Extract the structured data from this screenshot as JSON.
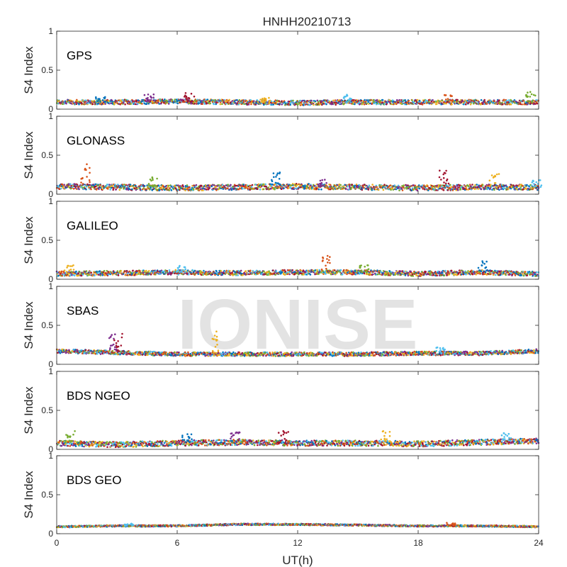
{
  "chart_data": {
    "type": "scatter",
    "title": "HNHH20210713",
    "xlabel": "UT(h)",
    "ylabel": "S4 Index",
    "xlim": [
      0,
      24
    ],
    "ylim": [
      0,
      1
    ],
    "xticks": [
      "0",
      "6",
      "12",
      "18",
      "24"
    ],
    "yticks": [
      "0",
      "0.5",
      "1"
    ],
    "watermark": "IONISE",
    "series_colors": [
      "#0072BD",
      "#D95319",
      "#EDB120",
      "#7E2F8E",
      "#77AC30",
      "#4DBEEE",
      "#A2142F"
    ],
    "panels": [
      {
        "label": "GPS",
        "baseline": [
          [
            0,
            0.09
          ],
          [
            3,
            0.09
          ],
          [
            6,
            0.1
          ],
          [
            9,
            0.09
          ],
          [
            12,
            0.08
          ],
          [
            15,
            0.09
          ],
          [
            18,
            0.09
          ],
          [
            21,
            0.09
          ],
          [
            24,
            0.09
          ]
        ],
        "noise": 0.03,
        "spikes": [
          [
            2.2,
            0.18
          ],
          [
            4.6,
            0.19
          ],
          [
            6.6,
            0.22
          ],
          [
            10.4,
            0.16
          ],
          [
            14.5,
            0.19
          ],
          [
            19.5,
            0.19
          ],
          [
            23.6,
            0.24
          ]
        ]
      },
      {
        "label": "GLONASS",
        "baseline": [
          [
            0,
            0.1
          ],
          [
            3,
            0.09
          ],
          [
            6,
            0.08
          ],
          [
            9,
            0.09
          ],
          [
            12,
            0.1
          ],
          [
            15,
            0.09
          ],
          [
            18,
            0.08
          ],
          [
            21,
            0.09
          ],
          [
            24,
            0.09
          ]
        ],
        "noise": 0.035,
        "spikes": [
          [
            1.4,
            0.4
          ],
          [
            4.8,
            0.22
          ],
          [
            10.9,
            0.29
          ],
          [
            13.2,
            0.2
          ],
          [
            19.3,
            0.32
          ],
          [
            21.8,
            0.26
          ],
          [
            23.9,
            0.18
          ]
        ]
      },
      {
        "label": "GALILEO",
        "baseline": [
          [
            0,
            0.07
          ],
          [
            3,
            0.08
          ],
          [
            6,
            0.09
          ],
          [
            9,
            0.08
          ],
          [
            12,
            0.09
          ],
          [
            15,
            0.09
          ],
          [
            18,
            0.07
          ],
          [
            21,
            0.09
          ],
          [
            24,
            0.07
          ]
        ],
        "noise": 0.03,
        "spikes": [
          [
            0.6,
            0.18
          ],
          [
            6.2,
            0.22
          ],
          [
            13.4,
            0.3
          ],
          [
            15.3,
            0.18
          ],
          [
            21.2,
            0.24
          ]
        ]
      },
      {
        "label": "SBAS",
        "baseline": [
          [
            0,
            0.17
          ],
          [
            3,
            0.15
          ],
          [
            6,
            0.13
          ],
          [
            9,
            0.13
          ],
          [
            12,
            0.13
          ],
          [
            15,
            0.13
          ],
          [
            18,
            0.14
          ],
          [
            21,
            0.14
          ],
          [
            24,
            0.17
          ]
        ],
        "noise": 0.025,
        "spikes": [
          [
            2.8,
            0.42
          ],
          [
            3.1,
            0.4
          ],
          [
            7.8,
            0.43
          ],
          [
            19.1,
            0.22
          ]
        ]
      },
      {
        "label": "BDS NGEO",
        "baseline": [
          [
            0,
            0.08
          ],
          [
            3,
            0.06
          ],
          [
            6,
            0.08
          ],
          [
            9,
            0.09
          ],
          [
            12,
            0.08
          ],
          [
            15,
            0.08
          ],
          [
            18,
            0.07
          ],
          [
            21,
            0.09
          ],
          [
            24,
            0.11
          ]
        ],
        "noise": 0.035,
        "spikes": [
          [
            0.7,
            0.24
          ],
          [
            6.5,
            0.2
          ],
          [
            8.9,
            0.24
          ],
          [
            11.3,
            0.26
          ],
          [
            16.4,
            0.24
          ],
          [
            22.4,
            0.21
          ]
        ]
      },
      {
        "label": "BDS GEO",
        "baseline": [
          [
            0,
            0.09
          ],
          [
            3,
            0.1
          ],
          [
            6,
            0.1
          ],
          [
            9,
            0.12
          ],
          [
            12,
            0.12
          ],
          [
            15,
            0.11
          ],
          [
            18,
            0.1
          ],
          [
            21,
            0.1
          ],
          [
            24,
            0.09
          ]
        ],
        "noise": 0.01,
        "spikes": [
          [
            3.6,
            0.13
          ],
          [
            19.6,
            0.14
          ]
        ]
      }
    ]
  }
}
